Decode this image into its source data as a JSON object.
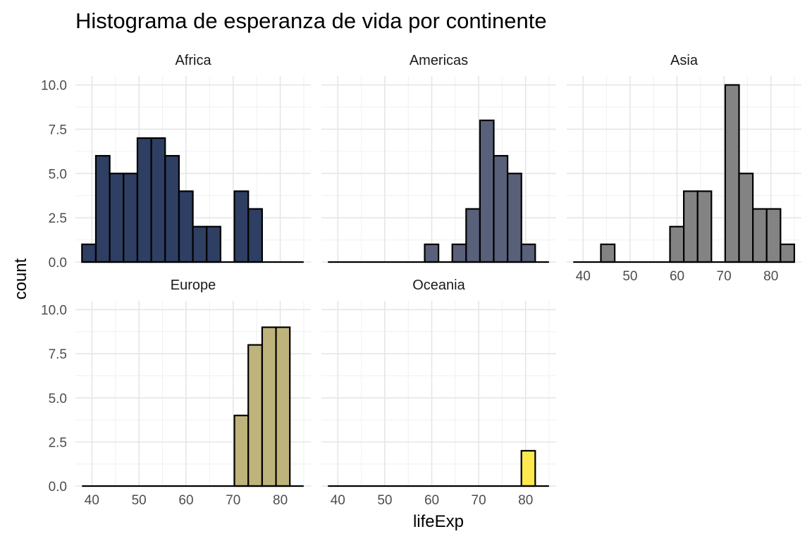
{
  "chart_data": {
    "type": "bar",
    "title": "Histograma de esperanza de vida por continente",
    "xlabel": "lifeExp",
    "ylabel": "count",
    "xlim": [
      36.5,
      86.5
    ],
    "ylim": [
      0,
      10.5
    ],
    "x_ticks": [
      40,
      50,
      60,
      70,
      80
    ],
    "x_tick_labels": [
      "40",
      "50",
      "60",
      "70",
      "80"
    ],
    "y_ticks": [
      0,
      2.5,
      5,
      7.5,
      10
    ],
    "y_tick_labels": [
      "0.0",
      "2.5",
      "5.0",
      "7.5",
      "10.0"
    ],
    "bin_width": 2.943,
    "bin_starts": [
      37.89,
      40.84,
      43.78,
      46.72,
      49.67,
      52.61,
      55.55,
      58.5,
      61.44,
      64.38,
      67.33,
      70.27,
      73.21,
      76.16,
      79.1,
      82.04
    ],
    "grid": true,
    "legend": "none",
    "series": [
      {
        "name": "Africa",
        "color": "#2e3f63",
        "counts": [
          1,
          6,
          5,
          5,
          7,
          7,
          6,
          4,
          2,
          2,
          0,
          4,
          3,
          0,
          0,
          0
        ]
      },
      {
        "name": "Americas",
        "color": "#59607a",
        "counts": [
          0,
          0,
          0,
          0,
          0,
          0,
          0,
          1,
          0,
          1,
          3,
          8,
          6,
          5,
          1,
          0
        ]
      },
      {
        "name": "Asia",
        "color": "#838383",
        "counts": [
          0,
          0,
          1,
          0,
          0,
          0,
          0,
          2,
          4,
          4,
          0,
          10,
          5,
          3,
          3,
          1
        ]
      },
      {
        "name": "Europe",
        "color": "#bfb37c",
        "counts": [
          0,
          0,
          0,
          0,
          0,
          0,
          0,
          0,
          0,
          0,
          0,
          4,
          8,
          9,
          9,
          0
        ]
      },
      {
        "name": "Oceania",
        "color": "#fde84e",
        "counts": [
          0,
          0,
          0,
          0,
          0,
          0,
          0,
          0,
          0,
          0,
          0,
          0,
          0,
          0,
          2,
          0
        ]
      }
    ]
  }
}
